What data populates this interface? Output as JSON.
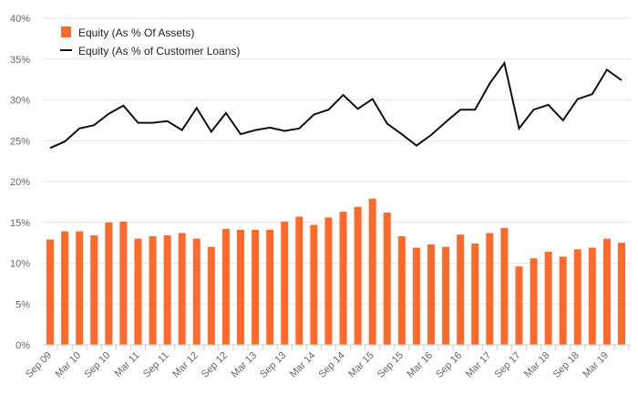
{
  "chart_data": {
    "type": "bar+line",
    "title": "",
    "xlabel": "",
    "ylabel": "",
    "ylim": [
      0,
      40
    ],
    "y_ticks": [
      "0%",
      "5%",
      "10%",
      "15%",
      "20%",
      "25%",
      "30%",
      "35%",
      "40%"
    ],
    "grid": true,
    "legend_position": "top-left",
    "x_tick_labels": [
      "Sep 09",
      "Mar 10",
      "Sep 10",
      "Mar 11",
      "Sep 11",
      "Mar 12",
      "Sep 12",
      "Mar 13",
      "Sep 13",
      "Mar 14",
      "Sep 14",
      "Mar 15",
      "Sep 15",
      "Mar 16",
      "Sep 16",
      "Mar 17",
      "Sep 17",
      "Mar 18",
      "Sep 18",
      "Mar 19"
    ],
    "categories": [
      "Sep 09",
      "Dec 09",
      "Mar 10",
      "Jun 10",
      "Sep 10",
      "Dec 10",
      "Mar 11",
      "Jun 11",
      "Sep 11",
      "Dec 11",
      "Mar 12",
      "Jun 12",
      "Sep 12",
      "Dec 12",
      "Mar 13",
      "Jun 13",
      "Sep 13",
      "Dec 13",
      "Mar 14",
      "Jun 14",
      "Sep 14",
      "Dec 14",
      "Mar 15",
      "Jun 15",
      "Sep 15",
      "Dec 15",
      "Mar 16",
      "Jun 16",
      "Sep 16",
      "Dec 16",
      "Mar 17",
      "Jun 17",
      "Sep 17",
      "Dec 17",
      "Mar 18",
      "Jun 18",
      "Sep 18",
      "Dec 18",
      "Mar 19",
      "Jun 19"
    ],
    "series": [
      {
        "name": "Equity (As % Of Assets)",
        "type": "bar",
        "color": "#ff6a2b",
        "values": [
          12.9,
          13.9,
          13.9,
          13.4,
          15.0,
          15.1,
          13.0,
          13.3,
          13.4,
          13.7,
          13.0,
          12.0,
          14.2,
          14.1,
          14.1,
          14.1,
          15.1,
          15.7,
          14.7,
          15.6,
          16.3,
          16.9,
          17.9,
          16.2,
          13.3,
          11.9,
          12.3,
          12.0,
          13.5,
          12.4,
          13.7,
          14.3,
          9.6,
          10.6,
          11.4,
          10.8,
          11.7,
          11.9,
          13.0,
          12.5
        ]
      },
      {
        "name": "Equity (As % of Customer Loans)",
        "type": "line",
        "color": "#111111",
        "values": [
          24.1,
          24.9,
          26.5,
          26.9,
          28.3,
          29.3,
          27.2,
          27.2,
          27.4,
          26.3,
          29.0,
          26.1,
          28.4,
          25.8,
          26.3,
          26.6,
          26.2,
          26.5,
          28.2,
          28.8,
          30.6,
          28.9,
          30.1,
          27.1,
          25.8,
          24.4,
          25.7,
          27.3,
          28.8,
          28.8,
          32.0,
          34.5,
          26.5,
          28.8,
          29.4,
          27.5,
          30.1,
          30.7,
          33.7,
          32.4
        ]
      }
    ]
  }
}
